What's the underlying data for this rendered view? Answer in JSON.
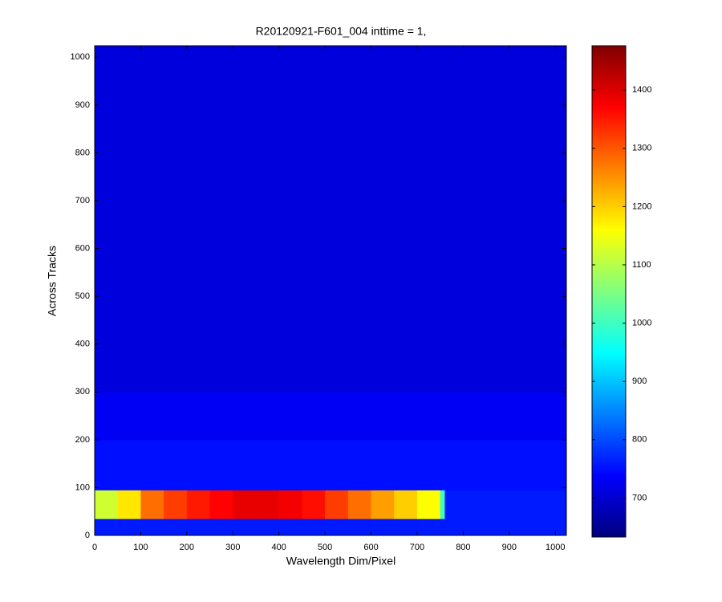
{
  "chart_data": {
    "type": "heatmap",
    "title": "R20120921-F601_004 inttime = 1,",
    "x_label": "Wavelength Dim/Pixel",
    "y_label": "Across Tracks",
    "x": [
      0,
      50,
      100,
      150,
      200,
      250,
      300,
      350,
      400,
      450,
      500,
      550,
      600,
      650,
      700,
      750,
      760,
      1024
    ],
    "y": [
      0,
      35,
      95,
      200,
      300,
      1024
    ],
    "values": [
      [
        760,
        760,
        760,
        760,
        760,
        760,
        760,
        760,
        760,
        760,
        760,
        760,
        760,
        760,
        760,
        760,
        760
      ],
      [
        1120,
        1180,
        1280,
        1320,
        1350,
        1370,
        1390,
        1390,
        1380,
        1360,
        1320,
        1280,
        1240,
        1200,
        1160,
        1000,
        760
      ],
      [
        750,
        750,
        750,
        750,
        750,
        750,
        750,
        750,
        750,
        750,
        750,
        750,
        750,
        750,
        750,
        750,
        750
      ],
      [
        730,
        730,
        730,
        730,
        730,
        730,
        730,
        730,
        730,
        730,
        730,
        730,
        730,
        730,
        730,
        730,
        730
      ],
      [
        710,
        710,
        710,
        710,
        710,
        710,
        710,
        710,
        710,
        710,
        710,
        710,
        710,
        710,
        710,
        710,
        710
      ]
    ],
    "xlim": [
      0,
      1024
    ],
    "ylim": [
      0,
      1024
    ],
    "xticks": [
      0,
      100,
      200,
      300,
      400,
      500,
      600,
      700,
      800,
      900,
      1000
    ],
    "yticks": [
      0,
      100,
      200,
      300,
      400,
      500,
      600,
      700,
      800,
      900,
      1000
    ],
    "colormap": "jet",
    "clim": [
      633,
      1476
    ],
    "cticks": [
      700,
      800,
      900,
      1000,
      1100,
      1200,
      1300,
      1400
    ]
  }
}
